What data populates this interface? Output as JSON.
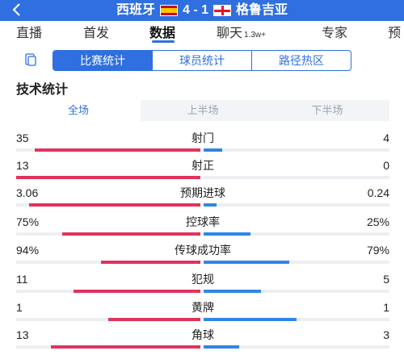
{
  "header": {
    "home_team": "西班牙",
    "score": "4 - 1",
    "away_team": "格鲁吉亚"
  },
  "tabs": [
    {
      "label": "直播"
    },
    {
      "label": "首发"
    },
    {
      "label": "数据"
    },
    {
      "label": "聊天",
      "badge": "1.3w+"
    },
    {
      "label": "专家"
    },
    {
      "label": "预"
    }
  ],
  "active_tab": "数据",
  "segments": [
    "比赛统计",
    "球员统计",
    "路径热区"
  ],
  "active_segment": "比赛统计",
  "section_title": "技术统计",
  "periods": [
    "全场",
    "上半场",
    "下半场"
  ],
  "active_period": "全场",
  "stats": [
    {
      "name": "射门",
      "home": "35",
      "away": "4",
      "home_share": 0.9,
      "away_share": 0.1
    },
    {
      "name": "射正",
      "home": "13",
      "away": "0",
      "home_share": 1.0,
      "away_share": 0.0
    },
    {
      "name": "预期进球",
      "home": "3.06",
      "away": "0.24",
      "home_share": 0.93,
      "away_share": 0.07
    },
    {
      "name": "控球率",
      "home": "75%",
      "away": "25%",
      "home_share": 0.75,
      "away_share": 0.25
    },
    {
      "name": "传球成功率",
      "home": "94%",
      "away": "79%",
      "home_share": 0.54,
      "away_share": 0.46
    },
    {
      "name": "犯规",
      "home": "11",
      "away": "5",
      "home_share": 0.69,
      "away_share": 0.31
    },
    {
      "name": "黄牌",
      "home": "1",
      "away": "1",
      "home_share": 0.5,
      "away_share": 0.5
    },
    {
      "name": "角球",
      "home": "13",
      "away": "3",
      "home_share": 0.81,
      "away_share": 0.19
    }
  ],
  "colors": {
    "primary": "#2f6fe0",
    "home_bar": "#e0335f",
    "away_bar": "#2f86e8"
  },
  "icons": {
    "back": "back-arrow-icon",
    "home_flag": "spain-flag-icon",
    "away_flag": "georgia-flag-icon",
    "doc": "document-icon"
  }
}
